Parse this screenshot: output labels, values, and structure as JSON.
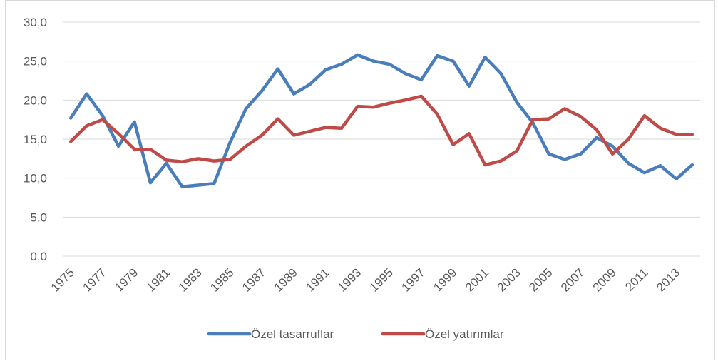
{
  "chart_data": {
    "type": "line",
    "categories": [
      "1975",
      null,
      "1977",
      null,
      "1979",
      null,
      "1981",
      null,
      "1983",
      null,
      "1985",
      null,
      "1987",
      null,
      "1989",
      null,
      "1991",
      null,
      "1993",
      null,
      "1995",
      null,
      "1997",
      null,
      "1999",
      null,
      "2001",
      null,
      "2003",
      null,
      "2005",
      null,
      "2007",
      null,
      "2009",
      null,
      "2011",
      null,
      "2013",
      null
    ],
    "series": [
      {
        "name": "Özel tasarruflar",
        "color": "#4a7ebb",
        "values": [
          17.7,
          20.8,
          18.0,
          14.1,
          17.2,
          9.4,
          11.9,
          8.9,
          9.1,
          9.3,
          14.6,
          18.9,
          21.2,
          24.0,
          20.8,
          22.0,
          23.9,
          24.6,
          25.8,
          25.0,
          24.6,
          23.4,
          22.6,
          25.7,
          25.0,
          21.8,
          25.5,
          23.4,
          19.7,
          17.1,
          13.1,
          12.4,
          13.1,
          15.2,
          14.1,
          11.9,
          10.7,
          11.6,
          9.9,
          11.7
        ]
      },
      {
        "name": "Özel yatırımlar",
        "color": "#be4b48",
        "values": [
          14.7,
          16.7,
          17.5,
          15.7,
          13.7,
          13.7,
          12.3,
          12.1,
          12.5,
          12.2,
          12.4,
          14.1,
          15.5,
          17.6,
          15.5,
          16.0,
          16.5,
          16.4,
          19.2,
          19.1,
          19.6,
          20.0,
          20.5,
          18.2,
          14.3,
          15.7,
          11.7,
          12.2,
          13.5,
          17.5,
          17.6,
          18.9,
          17.9,
          16.2,
          13.1,
          15.0,
          18.0,
          16.4,
          15.6,
          15.6
        ]
      }
    ],
    "ylim": [
      0,
      30
    ],
    "yticks": [
      {
        "value": 0,
        "label": "0,0"
      },
      {
        "value": 5,
        "label": "5,0"
      },
      {
        "value": 10,
        "label": "10,0"
      },
      {
        "value": 15,
        "label": "15,0"
      },
      {
        "value": 20,
        "label": "20,0"
      },
      {
        "value": 25,
        "label": "25,0"
      },
      {
        "value": 30,
        "label": "30,0"
      }
    ],
    "grid": true,
    "legend": "bottom"
  }
}
